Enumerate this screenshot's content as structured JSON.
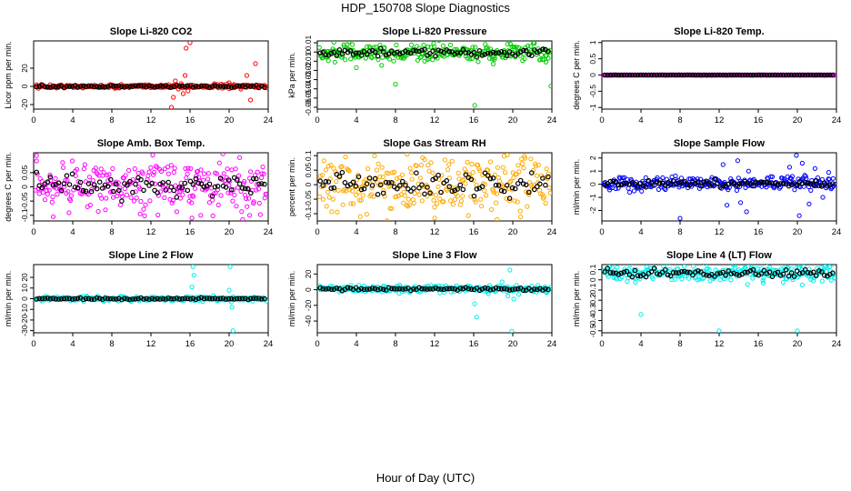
{
  "title": "HDP_150708  Slope Diagnostics",
  "xlabel": "Hour of Day (UTC)",
  "chart_data": [
    {
      "type": "scatter",
      "title": "Slope Li-820 CO2",
      "ylabel": "Licor ppm per min.",
      "color": "#ff0000",
      "xlim": [
        0,
        24
      ],
      "xticks": [
        0,
        4,
        8,
        12,
        16,
        20,
        24
      ],
      "ylim": [
        -25,
        50
      ],
      "yticks": [
        -20,
        0,
        20
      ],
      "base": 0,
      "noise": 1.0,
      "mean_noise": 0.6,
      "outliers": [
        {
          "x": 14.1,
          "y": -23
        },
        {
          "x": 14.3,
          "y": -12
        },
        {
          "x": 14.5,
          "y": 6
        },
        {
          "x": 14.8,
          "y": -3
        },
        {
          "x": 15.1,
          "y": 3
        },
        {
          "x": 15.3,
          "y": -8
        },
        {
          "x": 15.5,
          "y": 12
        },
        {
          "x": 15.8,
          "y": -5
        },
        {
          "x": 16.0,
          "y": 48
        },
        {
          "x": 15.6,
          "y": 42
        },
        {
          "x": 18.5,
          "y": 3
        },
        {
          "x": 19.3,
          "y": -2
        },
        {
          "x": 20.0,
          "y": 4
        },
        {
          "x": 20.5,
          "y": 2
        },
        {
          "x": 21.2,
          "y": -3
        },
        {
          "x": 22.2,
          "y": -15
        },
        {
          "x": 22.7,
          "y": 25
        },
        {
          "x": 21.8,
          "y": 12
        }
      ]
    },
    {
      "type": "scatter",
      "title": "Slope Li-820 Pressure",
      "ylabel": "kPa per min.",
      "color": "#00cc00",
      "xlim": [
        0,
        24
      ],
      "xticks": [
        0,
        4,
        8,
        12,
        16,
        20,
        24
      ],
      "ylim": [
        -0.062,
        0.012
      ],
      "yticks": [
        -0.06,
        -0.05,
        -0.04,
        -0.03,
        -0.02,
        -0.01,
        0.0,
        0.01
      ],
      "base": -0.001,
      "noise": 0.005,
      "mean_noise": 0.002,
      "outliers": [
        {
          "x": 8.0,
          "y": -0.035
        },
        {
          "x": 16.1,
          "y": -0.058
        },
        {
          "x": 23.9,
          "y": -0.037
        },
        {
          "x": 4.0,
          "y": -0.017
        },
        {
          "x": 1.8,
          "y": -0.011
        },
        {
          "x": 23.4,
          "y": -0.011
        },
        {
          "x": 18.0,
          "y": -0.013
        },
        {
          "x": 22.2,
          "y": 0.01
        }
      ]
    },
    {
      "type": "scatter",
      "title": "Slope Li-820 Temp.",
      "ylabel": "degrees C per min.",
      "color": "#dd00dd",
      "xlim": [
        0,
        24
      ],
      "xticks": [
        0,
        4,
        8,
        12,
        16,
        20,
        24
      ],
      "ylim": [
        -1.05,
        1.05
      ],
      "yticks": [
        -1.0,
        -0.5,
        0.0,
        0.5,
        1.0
      ],
      "base": 0,
      "noise": 0.003,
      "mean_noise": 0.001,
      "outliers": []
    },
    {
      "type": "scatter",
      "title": "Slope Amb. Box Temp.",
      "ylabel": "degrees C per min.",
      "color": "#ff00ff",
      "xlim": [
        0,
        24
      ],
      "xticks": [
        0,
        4,
        8,
        12,
        16,
        20,
        24
      ],
      "ylim": [
        -0.12,
        0.12
      ],
      "yticks": [
        -0.1,
        -0.05,
        0.0,
        0.05
      ],
      "base": 0.005,
      "noise": 0.045,
      "mean_noise": 0.02,
      "outliers": [
        {
          "x": 0.3,
          "y": 0.11
        },
        {
          "x": 16.2,
          "y": -0.11
        },
        {
          "x": 17.1,
          "y": -0.1
        },
        {
          "x": 2.0,
          "y": -0.105
        },
        {
          "x": 22.1,
          "y": -0.1
        },
        {
          "x": 10.9,
          "y": -0.095
        }
      ]
    },
    {
      "type": "scatter",
      "title": "Slope Gas Stream RH",
      "ylabel": "percent per min.",
      "color": "#ffaa00",
      "xlim": [
        0,
        24
      ],
      "xticks": [
        0,
        4,
        8,
        12,
        16,
        20,
        24
      ],
      "ylim": [
        -0.125,
        0.11
      ],
      "yticks": [
        -0.1,
        -0.05,
        0.0,
        0.05,
        0.1
      ],
      "base": 0,
      "noise": 0.045,
      "mean_noise": 0.02,
      "outliers": [
        {
          "x": 9.2,
          "y": 0.105
        },
        {
          "x": 18.4,
          "y": -0.12
        },
        {
          "x": 4.4,
          "y": -0.11
        },
        {
          "x": 12.0,
          "y": -0.115
        }
      ]
    },
    {
      "type": "scatter",
      "title": "Slope Sample Flow",
      "ylabel": "ml/min per min.",
      "color": "#0000ff",
      "xlim": [
        0,
        24
      ],
      "xticks": [
        0,
        4,
        8,
        12,
        16,
        20,
        24
      ],
      "ylim": [
        -2.8,
        2.4
      ],
      "yticks": [
        -2,
        -1,
        0,
        1,
        2
      ],
      "base": 0.05,
      "noise": 0.25,
      "mean_noise": 0.12,
      "outliers": [
        {
          "x": 8.0,
          "y": -2.6
        },
        {
          "x": 12.4,
          "y": 1.5
        },
        {
          "x": 12.8,
          "y": -1.6
        },
        {
          "x": 13.9,
          "y": 1.8
        },
        {
          "x": 14.2,
          "y": -1.4
        },
        {
          "x": 15.0,
          "y": 1.0
        },
        {
          "x": 14.8,
          "y": -2.1
        },
        {
          "x": 19.9,
          "y": 2.2
        },
        {
          "x": 20.5,
          "y": 1.6
        },
        {
          "x": 20.2,
          "y": -2.4
        },
        {
          "x": 21.8,
          "y": 1.2
        },
        {
          "x": 22.6,
          "y": -1.0
        },
        {
          "x": 21.2,
          "y": -1.5
        },
        {
          "x": 19.2,
          "y": 1.3
        },
        {
          "x": 23.2,
          "y": 0.9
        }
      ]
    },
    {
      "type": "scatter",
      "title": "Slope Line 2 Flow",
      "ylabel": "ml/min per min.",
      "color": "#00eeee",
      "xlim": [
        0,
        24
      ],
      "xticks": [
        0,
        4,
        8,
        12,
        16,
        20,
        24
      ],
      "ylim": [
        -32,
        32
      ],
      "yticks": [
        -30,
        -20,
        -10,
        0,
        10,
        20
      ],
      "base": 0,
      "noise": 1.0,
      "mean_noise": 0.4,
      "outliers": [
        {
          "x": 16.3,
          "y": 30
        },
        {
          "x": 16.4,
          "y": 22
        },
        {
          "x": 16.2,
          "y": 11
        },
        {
          "x": 20.1,
          "y": 30
        },
        {
          "x": 20.3,
          "y": -8
        },
        {
          "x": 20.2,
          "y": -3
        },
        {
          "x": 20.4,
          "y": -30
        },
        {
          "x": 20.0,
          "y": 8
        },
        {
          "x": 18.4,
          "y": 3
        }
      ]
    },
    {
      "type": "scatter",
      "title": "Slope Line 3 Flow",
      "ylabel": "ml/min per min.",
      "color": "#00eeee",
      "xlim": [
        0,
        24
      ],
      "xticks": [
        0,
        4,
        8,
        12,
        16,
        20,
        24
      ],
      "ylim": [
        -55,
        32
      ],
      "yticks": [
        -40,
        -20,
        0,
        20
      ],
      "base": 1,
      "noise": 2.0,
      "mean_noise": 1.0,
      "outliers": [
        {
          "x": 16.3,
          "y": -35
        },
        {
          "x": 16.1,
          "y": -18
        },
        {
          "x": 19.9,
          "y": -53
        },
        {
          "x": 20.1,
          "y": -12
        },
        {
          "x": 19.5,
          "y": -8
        },
        {
          "x": 20.6,
          "y": -6
        },
        {
          "x": 18.9,
          "y": 10
        },
        {
          "x": 19.7,
          "y": 25
        },
        {
          "x": 17.5,
          "y": -5
        }
      ]
    },
    {
      "type": "scatter",
      "title": "Slope Line 4 (LT) Flow",
      "ylabel": "ml/min per min.",
      "color": "#00eeee",
      "xlim": [
        0,
        24
      ],
      "xticks": [
        0,
        4,
        8,
        12,
        16,
        20,
        24
      ],
      "ylim": [
        -0.52,
        0.15
      ],
      "yticks": [
        -0.5,
        -0.4,
        -0.3,
        -0.2,
        -0.1,
        0.0,
        0.1
      ],
      "base": 0.065,
      "noise": 0.04,
      "mean_noise": 0.02,
      "outliers": [
        {
          "x": 4.0,
          "y": -0.34
        },
        {
          "x": 12.0,
          "y": -0.5
        },
        {
          "x": 20.0,
          "y": -0.5
        },
        {
          "x": 20.2,
          "y": 0.12
        },
        {
          "x": 20.5,
          "y": -0.05
        },
        {
          "x": 16.5,
          "y": -0.03
        }
      ]
    }
  ]
}
